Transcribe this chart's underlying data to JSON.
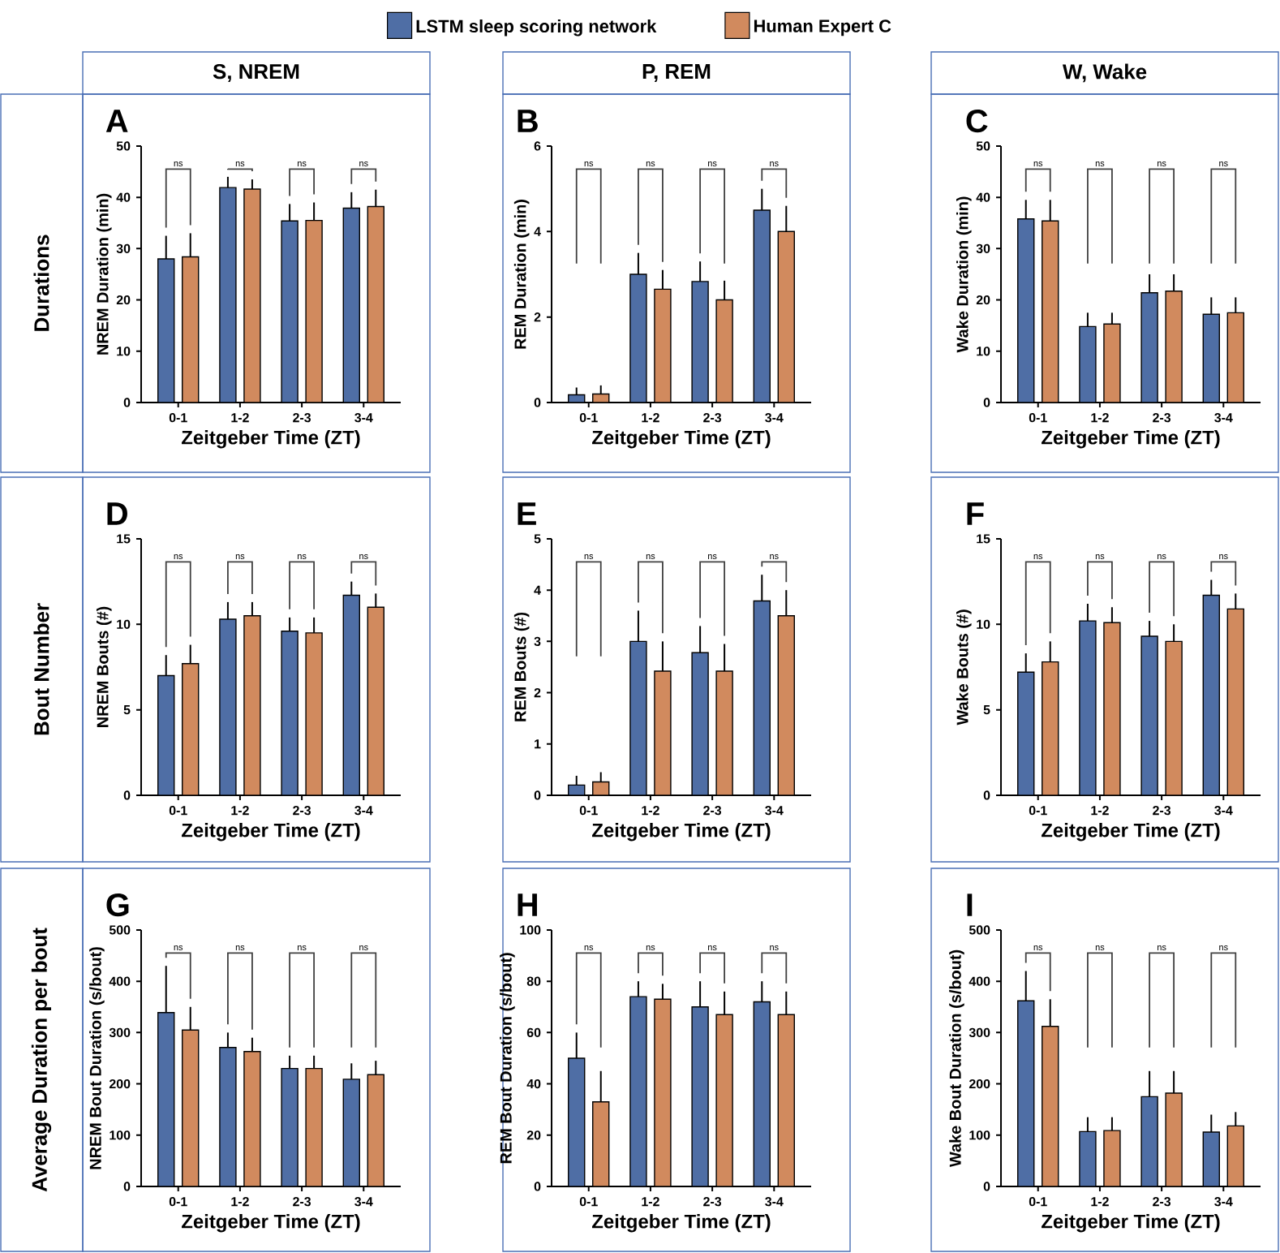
{
  "chart_data": [
    {
      "type": "bar",
      "title": "A",
      "subtitle": "S, NREM",
      "xlabel": "Zeitgeber Time  (ZT)",
      "ylabel": "NREM Duration  (min)",
      "categories": [
        "0-1",
        "1-2",
        "2-3",
        "3-4"
      ],
      "legend": "top",
      "series": [
        {
          "name": "LSTM sleep scoring network",
          "color": "#4f6ea5",
          "values": [
            28,
            41.9,
            35.4,
            37.9
          ],
          "errors": [
            [
              28,
              32.5
            ],
            [
              41.9,
              44
            ],
            [
              35.4,
              38.7
            ],
            [
              37.9,
              41
            ]
          ]
        },
        {
          "name": "Human Expert C",
          "color": "#d18a5e",
          "values": [
            28.4,
            41.6,
            35.5,
            38.2
          ],
          "errors": [
            [
              28.4,
              33
            ],
            [
              41.6,
              43.5
            ],
            [
              35.5,
              39
            ],
            [
              38.2,
              41.5
            ]
          ]
        }
      ],
      "ylim": [
        0,
        50
      ],
      "yticks": [
        0,
        10,
        20,
        30,
        40,
        50
      ],
      "annotations": [
        "Durations",
        "ns",
        "ns",
        "ns",
        "ns"
      ]
    },
    {
      "type": "bar",
      "title": "B",
      "subtitle": "P, REM",
      "xlabel": "Zeitgeber Time  (ZT)",
      "ylabel": "REM Duration  (min)",
      "categories": [
        "0-1",
        "1-2",
        "2-3",
        "3-4"
      ],
      "series": [
        {
          "color": "#4f6ea5",
          "values": [
            0.18,
            3.0,
            2.83,
            4.5
          ],
          "errors": [
            [
              0.18,
              0.35
            ],
            [
              3.0,
              3.5
            ],
            [
              2.83,
              3.3
            ],
            [
              4.5,
              5.0
            ]
          ]
        },
        {
          "color": "#d18a5e",
          "values": [
            0.2,
            2.65,
            2.4,
            4.0
          ],
          "errors": [
            [
              0.2,
              0.4
            ],
            [
              2.65,
              3.1
            ],
            [
              2.4,
              2.85
            ],
            [
              4.0,
              4.6
            ]
          ]
        }
      ],
      "ylim": [
        0,
        6
      ],
      "yticks": [
        0,
        2,
        4,
        6
      ],
      "annotations": [
        "ns",
        "ns",
        "ns",
        "ns"
      ]
    },
    {
      "type": "bar",
      "title": "C",
      "subtitle": "W, Wake",
      "xlabel": "Zeitgeber Time  (ZT)",
      "ylabel": "Wake Duration  (min)",
      "categories": [
        "0-1",
        "1-2",
        "2-3",
        "3-4"
      ],
      "series": [
        {
          "color": "#4f6ea5",
          "values": [
            35.8,
            14.8,
            21.4,
            17.2
          ],
          "errors": [
            [
              35.8,
              39.5
            ],
            [
              14.8,
              17.5
            ],
            [
              21.4,
              25
            ],
            [
              17.2,
              20.5
            ]
          ]
        },
        {
          "color": "#d18a5e",
          "values": [
            35.4,
            15.3,
            21.7,
            17.5
          ],
          "errors": [
            [
              35.4,
              39.5
            ],
            [
              15.3,
              17.5
            ],
            [
              21.7,
              25
            ],
            [
              17.5,
              20.5
            ]
          ]
        }
      ],
      "ylim": [
        0,
        50
      ],
      "yticks": [
        0,
        10,
        20,
        30,
        40,
        50
      ],
      "annotations": [
        "ns",
        "ns",
        "ns",
        "ns"
      ]
    },
    {
      "type": "bar",
      "title": "D",
      "xlabel": "Zeitgeber Time  (ZT)",
      "ylabel": "NREM Bouts (#)",
      "categories": [
        "0-1",
        "1-2",
        "2-3",
        "3-4"
      ],
      "series": [
        {
          "color": "#4f6ea5",
          "values": [
            7.0,
            10.3,
            9.6,
            11.7
          ],
          "errors": [
            [
              7.0,
              8.2
            ],
            [
              10.3,
              11.3
            ],
            [
              9.6,
              10.4
            ],
            [
              11.7,
              12.5
            ]
          ]
        },
        {
          "color": "#d18a5e",
          "values": [
            7.7,
            10.5,
            9.5,
            11.0
          ],
          "errors": [
            [
              7.7,
              8.8
            ],
            [
              10.5,
              11.3
            ],
            [
              9.5,
              10.4
            ],
            [
              11.0,
              11.8
            ]
          ]
        }
      ],
      "ylim": [
        0,
        15
      ],
      "yticks": [
        0,
        5,
        10,
        15
      ],
      "annotations": [
        "Bout Number",
        "ns",
        "ns",
        "ns",
        "ns"
      ]
    },
    {
      "type": "bar",
      "title": "E",
      "xlabel": "Zeitgeber Time  (ZT)",
      "ylabel": "REM Bouts (#)",
      "categories": [
        "0-1",
        "1-2",
        "2-3",
        "3-4"
      ],
      "series": [
        {
          "color": "#4f6ea5",
          "values": [
            0.2,
            3.0,
            2.78,
            3.79
          ],
          "errors": [
            [
              0.2,
              0.38
            ],
            [
              3.0,
              3.6
            ],
            [
              2.78,
              3.3
            ],
            [
              3.79,
              4.3
            ]
          ]
        },
        {
          "color": "#d18a5e",
          "values": [
            0.26,
            2.42,
            2.42,
            3.5
          ],
          "errors": [
            [
              0.26,
              0.45
            ],
            [
              2.42,
              3.0
            ],
            [
              2.42,
              2.95
            ],
            [
              3.5,
              4.0
            ]
          ]
        }
      ],
      "ylim": [
        0,
        5
      ],
      "yticks": [
        0,
        1,
        2,
        3,
        4,
        5
      ],
      "annotations": [
        "ns",
        "ns",
        "ns",
        "ns"
      ]
    },
    {
      "type": "bar",
      "title": "F",
      "xlabel": "Zeitgeber Time  (ZT)",
      "ylabel": "Wake Bouts (#)",
      "categories": [
        "0-1",
        "1-2",
        "2-3",
        "3-4"
      ],
      "series": [
        {
          "color": "#4f6ea5",
          "values": [
            7.2,
            10.2,
            9.3,
            11.7
          ],
          "errors": [
            [
              7.2,
              8.3
            ],
            [
              10.2,
              11.2
            ],
            [
              9.3,
              10.2
            ],
            [
              11.7,
              12.6
            ]
          ]
        },
        {
          "color": "#d18a5e",
          "values": [
            7.8,
            10.1,
            9.0,
            10.9
          ],
          "errors": [
            [
              7.8,
              9.0
            ],
            [
              10.1,
              11.0
            ],
            [
              9.0,
              10.0
            ],
            [
              10.9,
              11.8
            ]
          ]
        }
      ],
      "ylim": [
        0,
        15
      ],
      "yticks": [
        0,
        5,
        10,
        15
      ],
      "annotations": [
        "ns",
        "ns",
        "ns",
        "ns"
      ]
    },
    {
      "type": "bar",
      "title": "G",
      "xlabel": "Zeitgeber Time  (ZT)",
      "ylabel": "NREM Bout Duration (s/bout)",
      "categories": [
        "0-1",
        "1-2",
        "2-3",
        "3-4"
      ],
      "series": [
        {
          "color": "#4f6ea5",
          "values": [
            339,
            271,
            230,
            209
          ],
          "errors": [
            [
              339,
              430
            ],
            [
              271,
              300
            ],
            [
              230,
              255
            ],
            [
              209,
              240
            ]
          ]
        },
        {
          "color": "#d18a5e",
          "values": [
            305,
            263,
            230,
            218
          ],
          "errors": [
            [
              305,
              350
            ],
            [
              263,
              290
            ],
            [
              230,
              255
            ],
            [
              218,
              245
            ]
          ]
        }
      ],
      "ylim": [
        0,
        500
      ],
      "yticks": [
        0,
        100,
        200,
        300,
        400,
        500
      ],
      "annotations": [
        "Average Duration per bout",
        "ns",
        "ns",
        "ns",
        "ns"
      ]
    },
    {
      "type": "bar",
      "title": "H",
      "xlabel": "Zeitgeber Time  (ZT)",
      "ylabel": "REM Bout Duration (s/bout)",
      "categories": [
        "0-1",
        "1-2",
        "2-3",
        "3-4"
      ],
      "series": [
        {
          "color": "#4f6ea5",
          "values": [
            50,
            74,
            70,
            72
          ],
          "errors": [
            [
              50,
              60
            ],
            [
              74,
              80
            ],
            [
              70,
              80
            ],
            [
              72,
              80
            ]
          ]
        },
        {
          "color": "#d18a5e",
          "values": [
            33,
            73,
            67,
            67
          ],
          "errors": [
            [
              33,
              45
            ],
            [
              73,
              79
            ],
            [
              67,
              76
            ],
            [
              67,
              76
            ]
          ]
        }
      ],
      "ylim": [
        0,
        100
      ],
      "yticks": [
        0,
        20,
        40,
        60,
        80,
        100
      ],
      "annotations": [
        "ns",
        "ns",
        "ns",
        "ns"
      ]
    },
    {
      "type": "bar",
      "title": "I",
      "xlabel": "Zeitgeber Time  (ZT)",
      "ylabel": "Wake Bout Duration (s/bout)",
      "categories": [
        "0-1",
        "1-2",
        "2-3",
        "3-4"
      ],
      "series": [
        {
          "color": "#4f6ea5",
          "values": [
            362,
            107,
            175,
            106
          ],
          "errors": [
            [
              362,
              420
            ],
            [
              107,
              135
            ],
            [
              175,
              225
            ],
            [
              106,
              140
            ]
          ]
        },
        {
          "color": "#d18a5e",
          "values": [
            312,
            109,
            182,
            118
          ],
          "errors": [
            [
              312,
              365
            ],
            [
              109,
              135
            ],
            [
              182,
              225
            ],
            [
              118,
              145
            ]
          ]
        }
      ],
      "ylim": [
        0,
        500
      ],
      "yticks": [
        0,
        100,
        200,
        300,
        400,
        500
      ],
      "annotations": [
        "ns",
        "ns",
        "ns",
        "ns"
      ]
    }
  ]
}
